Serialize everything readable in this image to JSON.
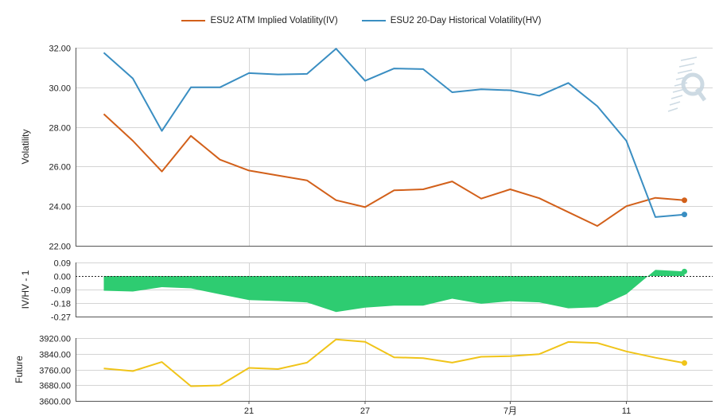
{
  "colors": {
    "iv": "#d2601a",
    "hv": "#3a8ec2",
    "ratio_fill": "#2ecc71",
    "future": "#f0c419",
    "grid": "#d4d4d4",
    "axis": "#555555",
    "text": "#222222",
    "logo": "#c8d6e0"
  },
  "chart_data": [
    {
      "panel": "volatility",
      "type": "line",
      "ylabel": "Volatility",
      "ylim": [
        22,
        32
      ],
      "yticks": [
        "32.00",
        "30.00",
        "28.00",
        "26.00",
        "24.00",
        "22.00"
      ],
      "x": [
        "06-14",
        "06-15",
        "06-16",
        "06-17",
        "06-20",
        "06-21",
        "06-22",
        "06-23",
        "06-24",
        "06-27",
        "06-28",
        "06-29",
        "06-30",
        "07-01",
        "07-05",
        "07-06",
        "07-07",
        "07-08",
        "07-11",
        "07-12",
        "07-13"
      ],
      "series": [
        {
          "name": "ESU2 ATM Implied Volatility(IV)",
          "color_key": "iv",
          "values": [
            28.65,
            27.3,
            25.75,
            27.55,
            26.35,
            25.8,
            25.55,
            25.3,
            24.3,
            23.95,
            24.8,
            24.85,
            25.25,
            24.38,
            24.85,
            24.4,
            23.7,
            23.0,
            24.0,
            24.42,
            24.3
          ]
        },
        {
          "name": "ESU2 20-Day Historical Volatility(HV)",
          "color_key": "hv",
          "values": [
            31.75,
            30.45,
            27.8,
            30.0,
            30.0,
            30.72,
            30.65,
            30.68,
            31.95,
            30.33,
            30.95,
            30.92,
            29.75,
            29.9,
            29.85,
            29.58,
            30.22,
            29.05,
            27.3,
            23.45,
            23.58
          ]
        }
      ],
      "legend": "top-center",
      "grid": true
    },
    {
      "panel": "ratio",
      "type": "area",
      "ylabel": "IV/HV - 1",
      "ylim": [
        -0.27,
        0.09
      ],
      "yticks": [
        "0.09",
        "0.00",
        "-0.09",
        "-0.18",
        "-0.27"
      ],
      "zero_line": "dashed",
      "series": [
        {
          "name": "IV/HV - 1",
          "color_key": "ratio_fill",
          "values": [
            -0.098,
            -0.103,
            -0.074,
            -0.082,
            -0.122,
            -0.16,
            -0.167,
            -0.176,
            -0.24,
            -0.21,
            -0.197,
            -0.197,
            -0.151,
            -0.185,
            -0.168,
            -0.175,
            -0.215,
            -0.208,
            -0.121,
            0.041,
            0.03
          ]
        }
      ]
    },
    {
      "panel": "future",
      "type": "line",
      "ylabel": "Future",
      "ylim": [
        3600,
        3920
      ],
      "yticks": [
        "3920.00",
        "3840.00",
        "3760.00",
        "3680.00",
        "3600.00"
      ],
      "xticks": [
        {
          "label": "21",
          "x": "06-21"
        },
        {
          "label": "27",
          "x": "06-27"
        },
        {
          "label": "7月",
          "x": "07-05"
        },
        {
          "label": "11",
          "x": "07-11"
        }
      ],
      "series": [
        {
          "name": "Future",
          "color_key": "future",
          "values": [
            3765,
            3752,
            3798,
            3675,
            3679,
            3768,
            3762,
            3795,
            3913,
            3901,
            3822,
            3818,
            3795,
            3825,
            3828,
            3838,
            3900,
            3895,
            3852,
            3820,
            3793
          ]
        }
      ]
    }
  ]
}
